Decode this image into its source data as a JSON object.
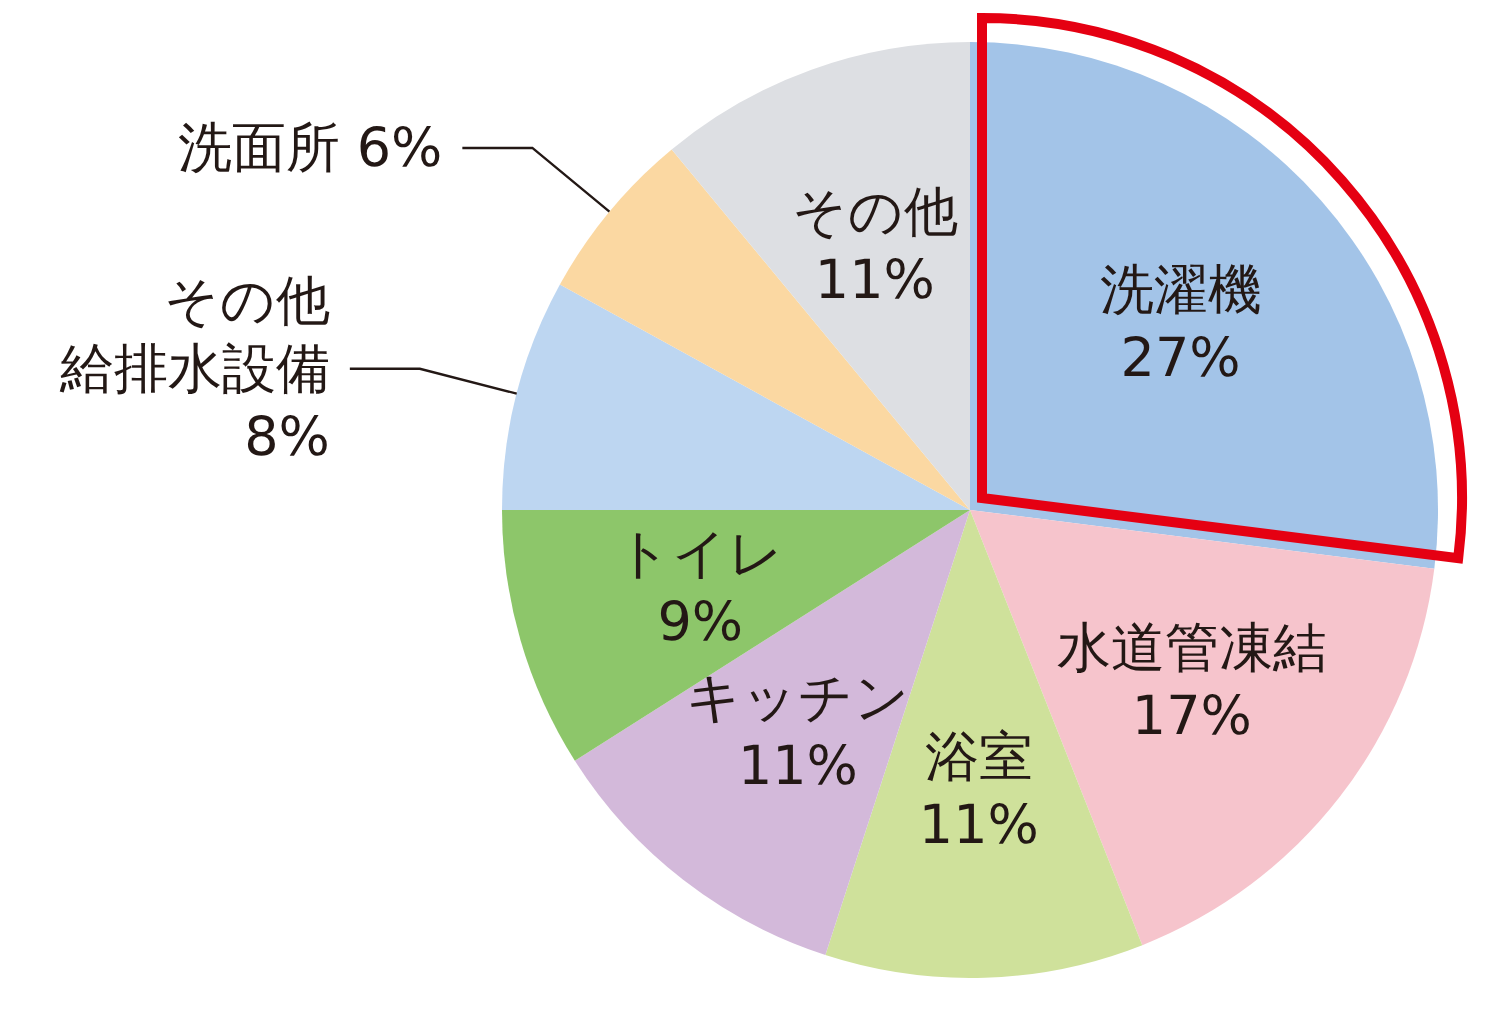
{
  "chart_data": {
    "type": "pie",
    "categories": [
      "洗濯機",
      "水道管凍結",
      "浴室",
      "キッチン",
      "トイレ",
      "その他給排水設備",
      "洗面所",
      "その他"
    ],
    "values": [
      27,
      17,
      11,
      11,
      9,
      8,
      6,
      11
    ],
    "value_labels": [
      "27%",
      "17%",
      "11%",
      "11%",
      "9%",
      "8%",
      "6%",
      "11%"
    ],
    "colors": [
      "#a3c4e8",
      "#f6c4cc",
      "#cfe19b",
      "#d3b9da",
      "#8dc66a",
      "#bdd6f1",
      "#fbd8a2",
      "#dddfe3"
    ]
  }
}
